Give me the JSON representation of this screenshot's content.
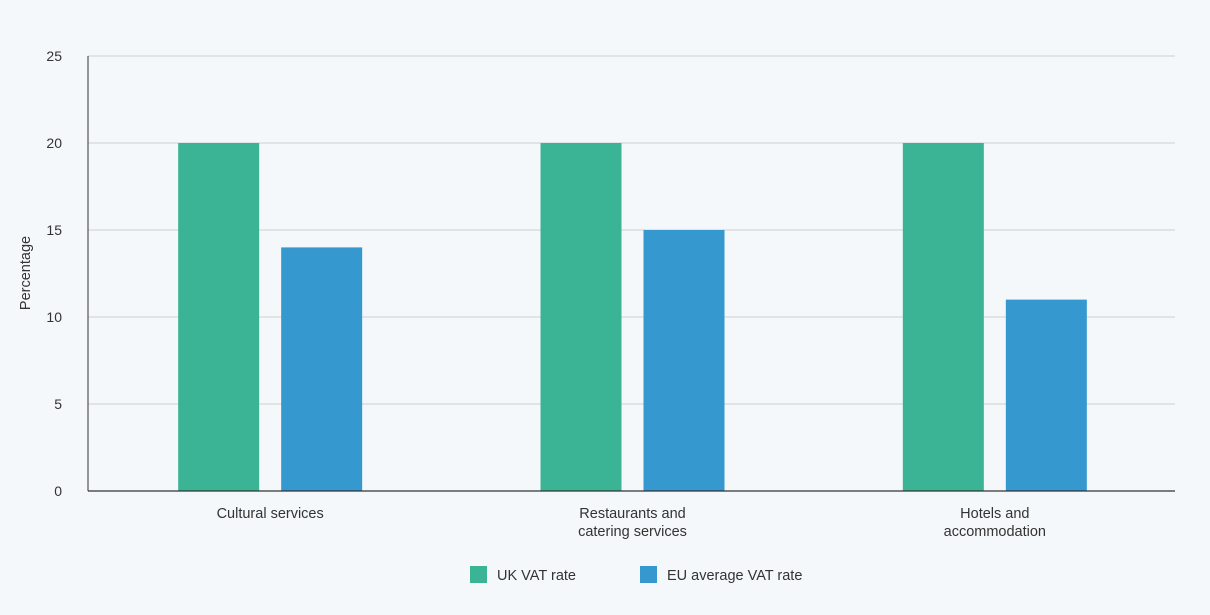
{
  "chart_data": {
    "type": "bar",
    "categories": [
      [
        "Cultural services"
      ],
      [
        "Restaurants and",
        "catering services"
      ],
      [
        "Hotels and",
        "accommodation"
      ]
    ],
    "series": [
      {
        "name": "UK VAT rate",
        "values": [
          20,
          20,
          20
        ],
        "color": "#3bb495"
      },
      {
        "name": "EU average VAT rate",
        "values": [
          14,
          15,
          11
        ],
        "color": "#3598cf"
      }
    ],
    "ylabel": "Percentage",
    "ylim": [
      0,
      25
    ],
    "yticks": [
      0,
      5,
      10,
      15,
      20,
      25
    ],
    "grid": true,
    "legend": "bottom-center"
  }
}
